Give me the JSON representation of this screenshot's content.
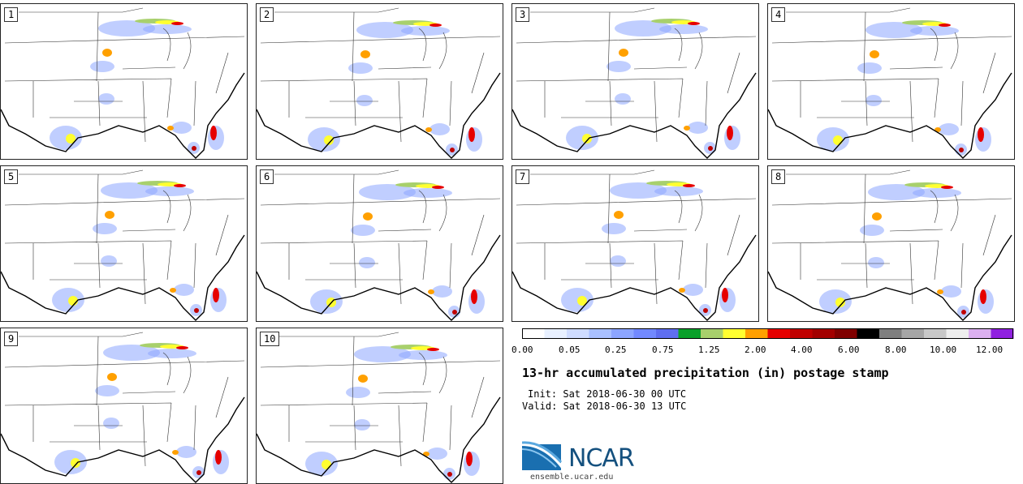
{
  "panels": [
    {
      "label": "1"
    },
    {
      "label": "2"
    },
    {
      "label": "3"
    },
    {
      "label": "4"
    },
    {
      "label": "5"
    },
    {
      "label": "6"
    },
    {
      "label": "7"
    },
    {
      "label": "8"
    },
    {
      "label": "9"
    },
    {
      "label": "10"
    }
  ],
  "colorbar": {
    "colors": [
      "#ffffff",
      "#e8f0ff",
      "#cfdcff",
      "#a9c0ff",
      "#8ca5ff",
      "#7289ff",
      "#5f6ef0",
      "#0aa02a",
      "#a8d06c",
      "#ffff30",
      "#ffa000",
      "#e60000",
      "#c00000",
      "#a30000",
      "#800000",
      "#000000",
      "#7f7f7f",
      "#a6a6a6",
      "#c8c8c8",
      "#eeeeee",
      "#dcb0f0",
      "#9020e0"
    ],
    "tick_labels": [
      "0.00",
      "0.05",
      "0.25",
      "0.75",
      "1.25",
      "2.00",
      "4.00",
      "6.00",
      "8.00",
      "10.00",
      "12.00"
    ]
  },
  "title": "13-hr accumulated precipitation (in) postage stamp",
  "init": "Init: Sat 2018-06-30 00 UTC",
  "valid": "Valid: Sat 2018-06-30 13 UTC",
  "logo_text": "NCAR",
  "url": "ensemble.ucar.edu"
}
